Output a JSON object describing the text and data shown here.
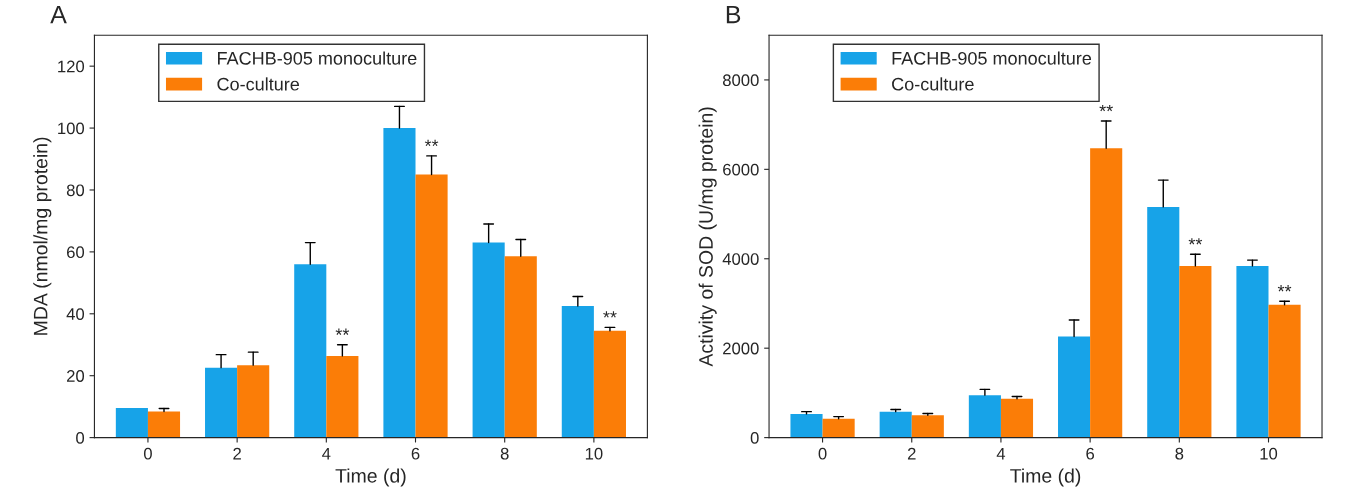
{
  "chart_data": [
    {
      "type": "bar",
      "title": "A",
      "xlabel": "Time (d)",
      "ylabel": "MDA (nmol/mg protein)",
      "categories": [
        "0",
        "2",
        "4",
        "6",
        "8",
        "10"
      ],
      "ylim": [
        0,
        130
      ],
      "yticks": [
        0,
        20,
        40,
        60,
        80,
        100,
        120
      ],
      "legend": "top left",
      "series": [
        {
          "name": "FACHB-905 monoculture",
          "color": "#17a3e8",
          "values": [
            9.6,
            22.6,
            56,
            100,
            63,
            42.5
          ],
          "errors": [
            null,
            [
              22.6,
              26.8
            ],
            [
              56,
              63
            ],
            [
              100,
              107
            ],
            [
              63,
              69
            ],
            [
              42.5,
              45.6
            ]
          ]
        },
        {
          "name": "Co-culture",
          "color": "#fb7d07",
          "values": [
            8.4,
            23.4,
            26.4,
            85,
            58.6,
            34.5
          ],
          "errors": [
            [
              8.4,
              9.4
            ],
            [
              23.4,
              27.6
            ],
            [
              26.4,
              30
            ],
            [
              85,
              91
            ],
            [
              58.6,
              64
            ],
            [
              34.5,
              35.6
            ]
          ]
        }
      ],
      "annotations": [
        {
          "text": "**",
          "x": "4",
          "y": 30
        },
        {
          "text": "**",
          "x": "6",
          "y": 91
        },
        {
          "text": "**",
          "x": "10",
          "y": 35.6
        }
      ]
    },
    {
      "type": "bar",
      "title": "B",
      "xlabel": "Time (d)",
      "ylabel": "Activity of SOD (U/mg protein)",
      "categories": [
        "0",
        "2",
        "4",
        "6",
        "8",
        "10"
      ],
      "ylim": [
        0,
        9000
      ],
      "yticks": [
        0,
        2000,
        4000,
        6000,
        8000
      ],
      "legend": "top left",
      "series": [
        {
          "name": "FACHB-905 monoculture",
          "color": "#17a3e8",
          "values": [
            530,
            580,
            950,
            2260,
            5160,
            3840
          ],
          "errors": [
            [
              530,
              580
            ],
            [
              580,
              630
            ],
            [
              950,
              1080
            ],
            [
              2260,
              2630
            ],
            [
              5160,
              5760
            ],
            [
              3840,
              3970
            ]
          ]
        },
        {
          "name": "Co-culture",
          "color": "#fb7d07",
          "values": [
            420,
            500,
            870,
            6470,
            3840,
            2970
          ],
          "errors": [
            [
              420,
              470
            ],
            [
              500,
              540
            ],
            [
              870,
              920
            ],
            [
              6470,
              7080
            ],
            [
              3840,
              4100
            ],
            [
              2970,
              3050
            ]
          ]
        }
      ],
      "annotations": [
        {
          "text": "**",
          "x": "6",
          "y": 6470
        },
        {
          "text": "**",
          "x": "8",
          "y": 4100
        },
        {
          "text": "**",
          "x": "10",
          "y": 3050
        }
      ]
    }
  ]
}
